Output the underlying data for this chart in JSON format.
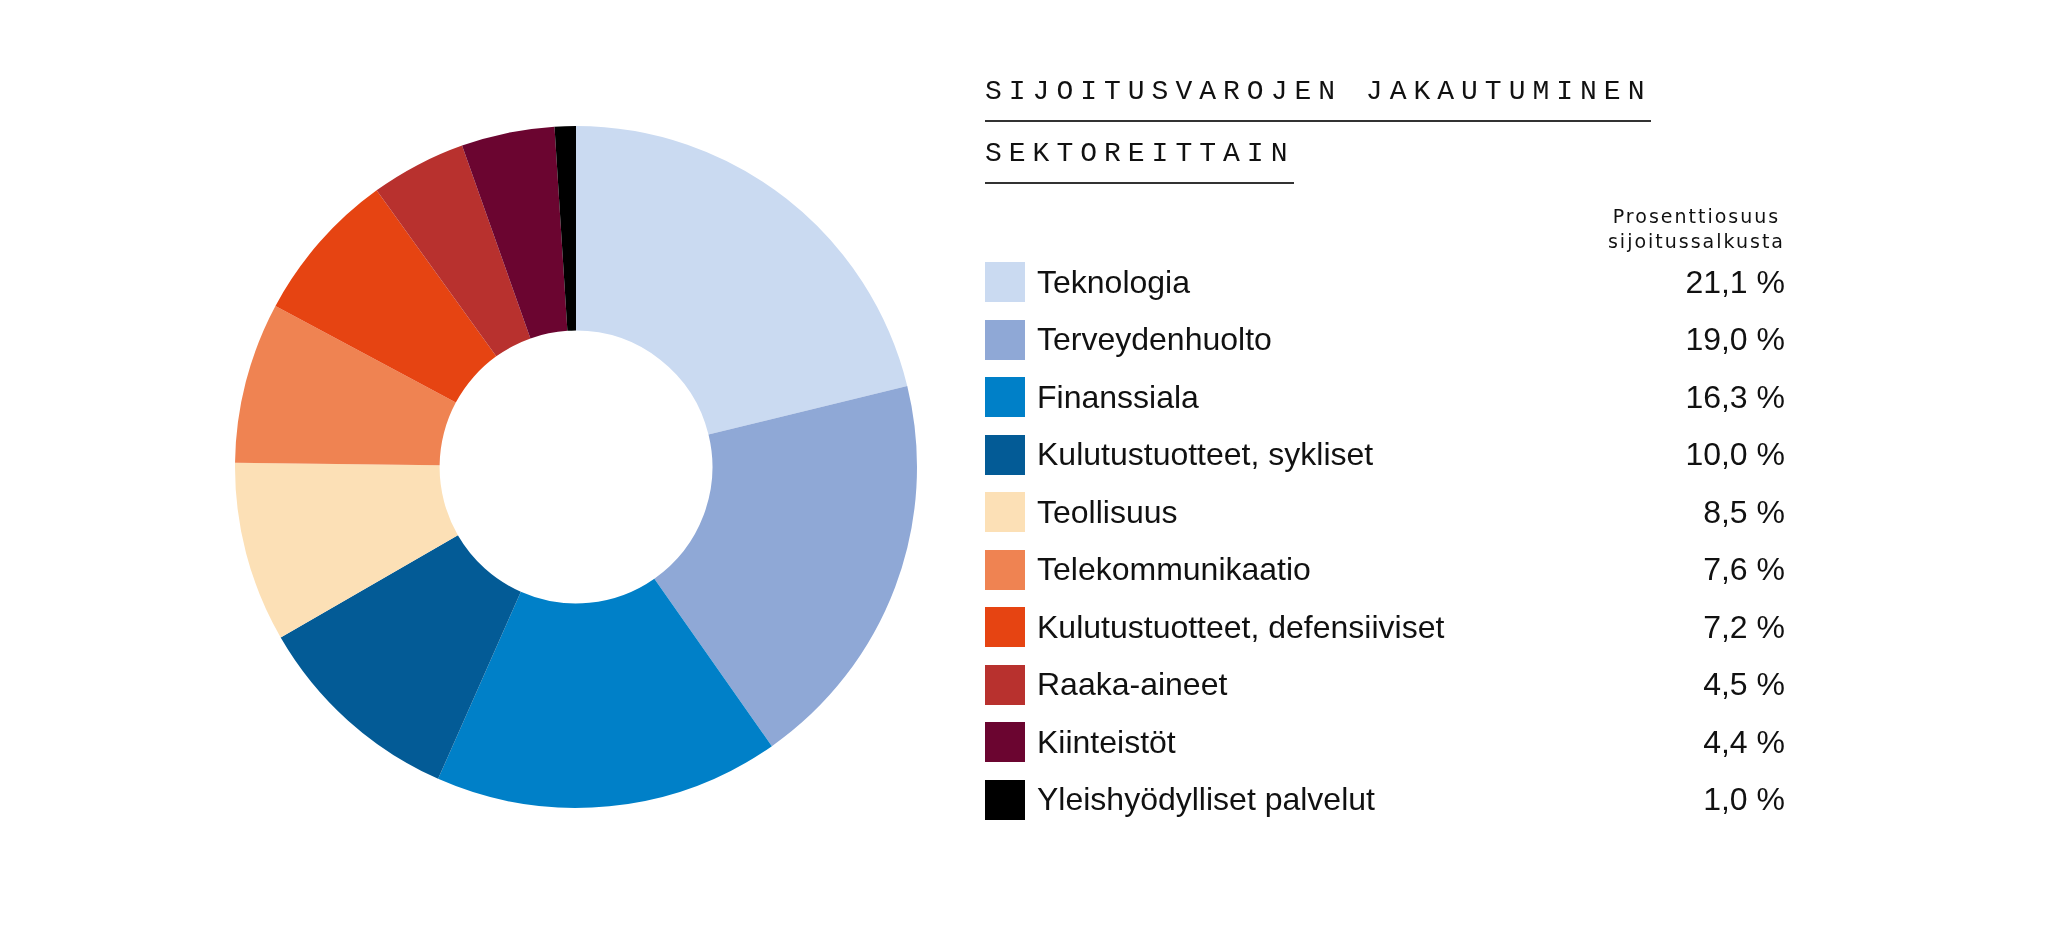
{
  "chart_data": {
    "type": "donut",
    "title": "SIJOITUSVAROJEN JAKAUTUMINEN SEKTOREITTAIN",
    "legend_title": "Prosenttiosuus sijoitussalkusta",
    "categories": [
      "Teknologia",
      "Terveydenhuolto",
      "Finanssiala",
      "Kulutustuotteet, sykliset",
      "Teollisuus",
      "Telekommunikaatio",
      "Kulutustuotteet, defensiiviset",
      "Raaka-aineet",
      "Kiinteistöt",
      "Yleishyödylliset palvelut"
    ],
    "values": [
      21.1,
      19.0,
      16.3,
      10.0,
      8.5,
      7.6,
      7.2,
      4.5,
      4.4,
      1.0
    ],
    "value_labels": [
      "21,1 %",
      "19,0 %",
      "16,3 %",
      "10,0 %",
      "8,5 %",
      "7,6 %",
      "7,2 %",
      "4,5 %",
      "4,4 %",
      "1,0 %"
    ],
    "colors": [
      "#cadaf1",
      "#8fa8d6",
      "#0080c8",
      "#035b96",
      "#fce0b6",
      "#ef8352",
      "#e64412",
      "#b8312e",
      "#6b0530",
      "#000000"
    ],
    "legend": "right"
  }
}
